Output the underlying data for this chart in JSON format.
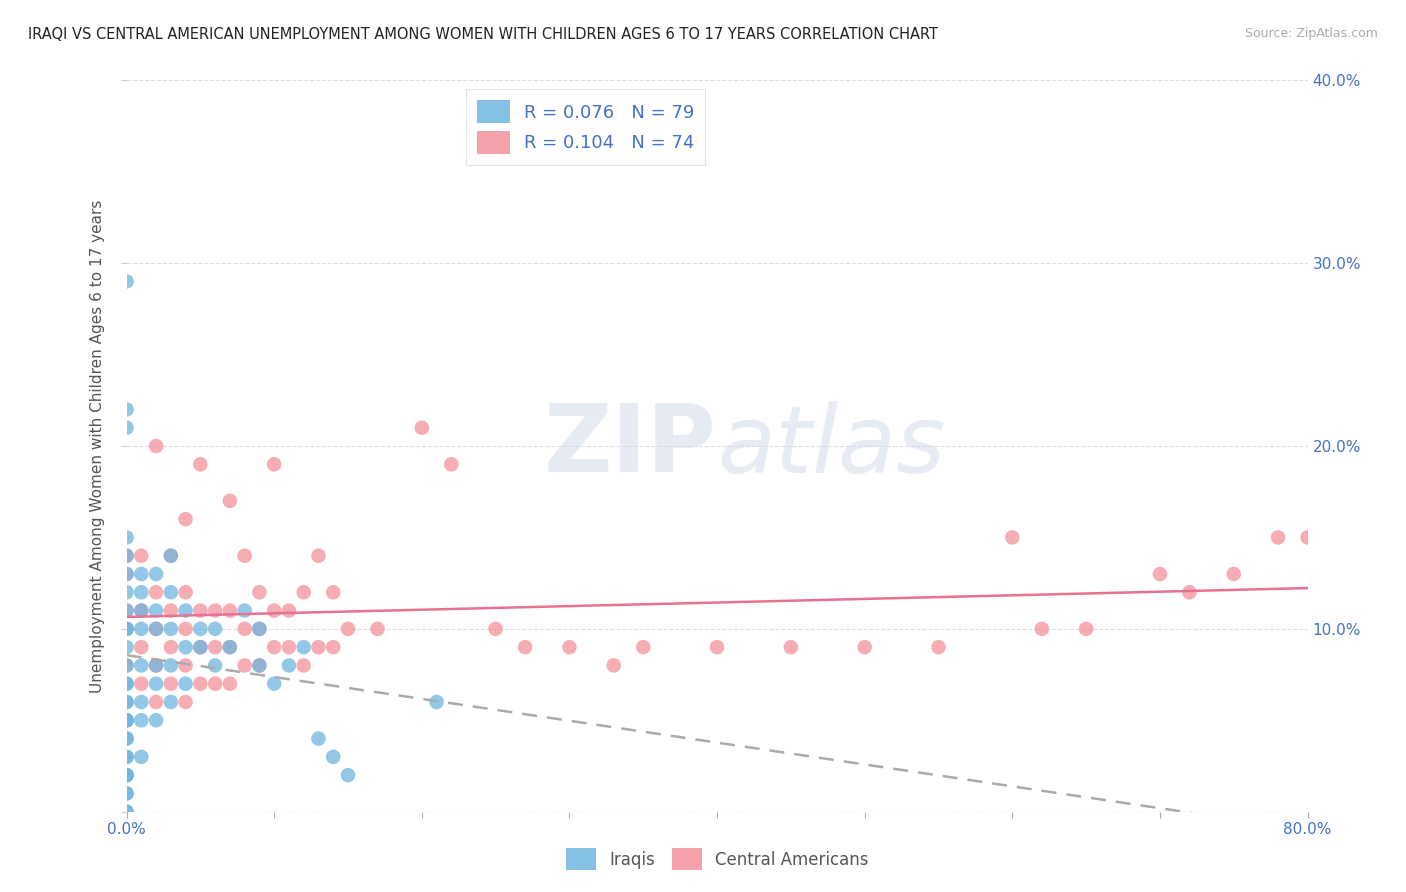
{
  "title": "IRAQI VS CENTRAL AMERICAN UNEMPLOYMENT AMONG WOMEN WITH CHILDREN AGES 6 TO 17 YEARS CORRELATION CHART",
  "source": "Source: ZipAtlas.com",
  "ylabel": "Unemployment Among Women with Children Ages 6 to 17 years",
  "xmin": 0.0,
  "xmax": 0.8,
  "ymin": 0.0,
  "ymax": 0.4,
  "xticks": [
    0.0,
    0.1,
    0.2,
    0.3,
    0.4,
    0.5,
    0.6,
    0.7,
    0.8
  ],
  "xticklabels_show": [
    "0.0%",
    "",
    "",
    "",
    "",
    "",
    "",
    "",
    "80.0%"
  ],
  "yticks": [
    0.0,
    0.1,
    0.2,
    0.3,
    0.4
  ],
  "ytick_right_labels": [
    "",
    "10.0%",
    "20.0%",
    "30.0%",
    "40.0%"
  ],
  "iraqis_color": "#6eb5e0",
  "central_americans_color": "#f4919a",
  "regression_iraqi_color": "#a0c8e8",
  "regression_central_color": "#e87090",
  "legend_R_iraqis": "0.076",
  "legend_N_iraqis": "79",
  "legend_R_central": "0.104",
  "legend_N_central": "74",
  "watermark": "ZIPatlas",
  "iraqis_x": [
    0.0,
    0.0,
    0.0,
    0.0,
    0.0,
    0.0,
    0.0,
    0.0,
    0.0,
    0.0,
    0.0,
    0.0,
    0.0,
    0.0,
    0.0,
    0.0,
    0.0,
    0.0,
    0.0,
    0.0,
    0.0,
    0.0,
    0.0,
    0.0,
    0.0,
    0.0,
    0.0,
    0.0,
    0.0,
    0.0,
    0.01,
    0.01,
    0.01,
    0.01,
    0.01,
    0.01,
    0.01,
    0.01,
    0.02,
    0.02,
    0.02,
    0.02,
    0.02,
    0.02,
    0.03,
    0.03,
    0.03,
    0.03,
    0.03,
    0.04,
    0.04,
    0.04,
    0.05,
    0.05,
    0.06,
    0.06,
    0.07,
    0.08,
    0.09,
    0.09,
    0.1,
    0.11,
    0.12,
    0.13,
    0.14,
    0.15,
    0.21
  ],
  "iraqis_y": [
    0.0,
    0.01,
    0.02,
    0.02,
    0.03,
    0.04,
    0.05,
    0.05,
    0.06,
    0.07,
    0.08,
    0.09,
    0.1,
    0.1,
    0.11,
    0.12,
    0.13,
    0.14,
    0.15,
    0.21,
    0.22,
    0.0,
    0.01,
    0.02,
    0.03,
    0.04,
    0.05,
    0.06,
    0.07,
    0.29,
    0.03,
    0.05,
    0.06,
    0.08,
    0.1,
    0.11,
    0.12,
    0.13,
    0.05,
    0.07,
    0.08,
    0.1,
    0.11,
    0.13,
    0.06,
    0.08,
    0.1,
    0.12,
    0.14,
    0.07,
    0.09,
    0.11,
    0.09,
    0.1,
    0.08,
    0.1,
    0.09,
    0.11,
    0.08,
    0.1,
    0.07,
    0.08,
    0.09,
    0.04,
    0.03,
    0.02,
    0.06
  ],
  "central_x": [
    0.0,
    0.0,
    0.0,
    0.0,
    0.0,
    0.01,
    0.01,
    0.01,
    0.01,
    0.02,
    0.02,
    0.02,
    0.02,
    0.02,
    0.03,
    0.03,
    0.03,
    0.03,
    0.04,
    0.04,
    0.04,
    0.04,
    0.04,
    0.05,
    0.05,
    0.05,
    0.05,
    0.06,
    0.06,
    0.06,
    0.07,
    0.07,
    0.07,
    0.07,
    0.08,
    0.08,
    0.08,
    0.09,
    0.09,
    0.09,
    0.1,
    0.1,
    0.1,
    0.11,
    0.11,
    0.12,
    0.12,
    0.13,
    0.13,
    0.14,
    0.14,
    0.15,
    0.17,
    0.2,
    0.22,
    0.25,
    0.27,
    0.3,
    0.33,
    0.35,
    0.4,
    0.45,
    0.5,
    0.55,
    0.6,
    0.62,
    0.65,
    0.7,
    0.72,
    0.75,
    0.78,
    0.8
  ],
  "central_y": [
    0.08,
    0.1,
    0.11,
    0.13,
    0.14,
    0.07,
    0.09,
    0.11,
    0.14,
    0.06,
    0.08,
    0.1,
    0.12,
    0.2,
    0.07,
    0.09,
    0.11,
    0.14,
    0.06,
    0.08,
    0.1,
    0.12,
    0.16,
    0.07,
    0.09,
    0.11,
    0.19,
    0.07,
    0.09,
    0.11,
    0.07,
    0.09,
    0.11,
    0.17,
    0.08,
    0.1,
    0.14,
    0.08,
    0.1,
    0.12,
    0.09,
    0.11,
    0.19,
    0.09,
    0.11,
    0.08,
    0.12,
    0.09,
    0.14,
    0.09,
    0.12,
    0.1,
    0.1,
    0.21,
    0.19,
    0.1,
    0.09,
    0.09,
    0.08,
    0.09,
    0.09,
    0.09,
    0.09,
    0.09,
    0.15,
    0.1,
    0.1,
    0.13,
    0.12,
    0.13,
    0.15,
    0.15
  ]
}
